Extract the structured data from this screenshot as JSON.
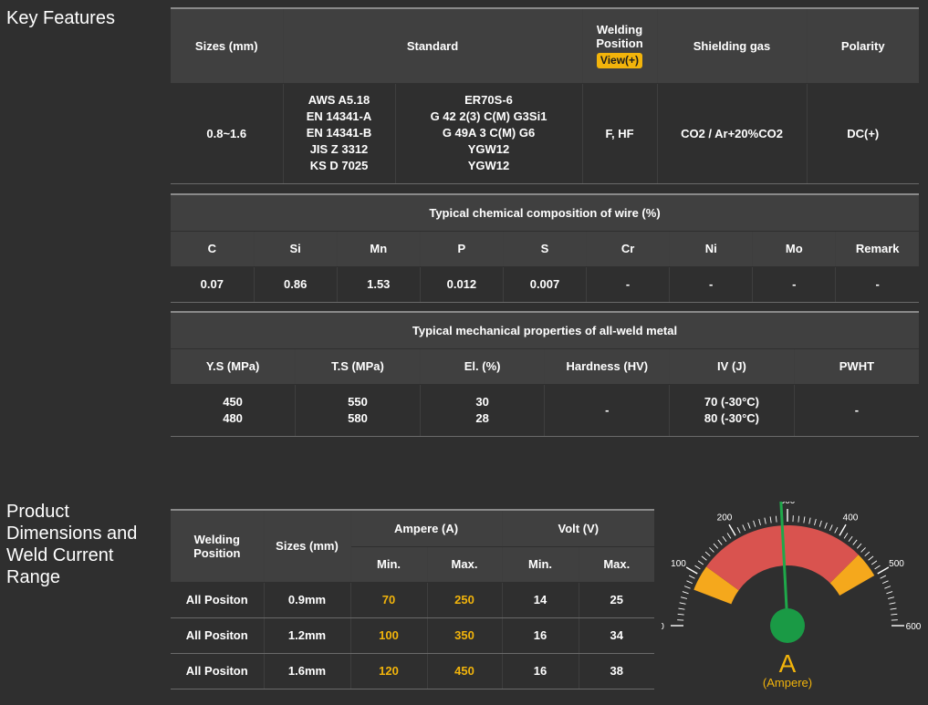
{
  "key_features": {
    "title": "Key Features",
    "headers": {
      "sizes": "Sizes (mm)",
      "standard": "Standard",
      "welding_position": [
        "Welding",
        "Position"
      ],
      "view_button": "View(+)",
      "shielding_gas": "Shielding gas",
      "polarity": "Polarity"
    },
    "row": {
      "sizes": "0.8~1.6",
      "standards": [
        "AWS A5.18",
        "EN 14341-A",
        "EN 14341-B",
        "JIS Z 3312",
        "KS D 7025"
      ],
      "classes": [
        "ER70S-6",
        "G 42 2(3) C(M) G3Si1",
        "G 49A 3 C(M) G6",
        "YGW12",
        "YGW12"
      ],
      "welding_position": "F, HF",
      "shielding_gas": "CO2 / Ar+20%CO2",
      "polarity": "DC(+)"
    }
  },
  "chemical": {
    "title": "Typical chemical composition of wire (%)",
    "headers": [
      "C",
      "Si",
      "Mn",
      "P",
      "S",
      "Cr",
      "Ni",
      "Mo",
      "Remark"
    ],
    "values": [
      "0.07",
      "0.86",
      "1.53",
      "0.012",
      "0.007",
      "-",
      "-",
      "-",
      "-"
    ]
  },
  "mechanical": {
    "title": "Typical mechanical properties of all-weld metal",
    "headers": [
      "Y.S (MPa)",
      "T.S (MPa)",
      "El. (%)",
      "Hardness (HV)",
      "IV (J)",
      "PWHT"
    ],
    "values": [
      [
        "450",
        "480"
      ],
      [
        "550",
        "580"
      ],
      [
        "30",
        "28"
      ],
      [
        "-"
      ],
      [
        "70 (-30°C)",
        "80 (-30°C)"
      ],
      [
        "-"
      ]
    ]
  },
  "dimensions": {
    "title": [
      "Product",
      "Dimensions and",
      "Weld Current",
      "Range"
    ],
    "headers": {
      "welding_position": [
        "Welding",
        "Position"
      ],
      "sizes": "Sizes (mm)",
      "ampere": "Ampere (A)",
      "volt": "Volt (V)",
      "min": "Min.",
      "max": "Max."
    },
    "rows": [
      {
        "position": "All Positon",
        "size": "0.9mm",
        "amp_min": "70",
        "amp_max": "250",
        "volt_min": "14",
        "volt_max": "25"
      },
      {
        "position": "All Positon",
        "size": "1.2mm",
        "amp_min": "100",
        "amp_max": "350",
        "volt_min": "16",
        "volt_max": "34"
      },
      {
        "position": "All Positon",
        "size": "1.6mm",
        "amp_min": "120",
        "amp_max": "450",
        "volt_min": "16",
        "volt_max": "38"
      }
    ]
  },
  "gauge": {
    "unit_letter": "A",
    "unit_label": "(Ampere)",
    "scale_min": 0,
    "scale_max": 600,
    "tick_labels": [
      "0",
      "100",
      "200",
      "300",
      "400",
      "500",
      "600"
    ],
    "zones": [
      {
        "from": 70,
        "to": 120,
        "color": "#f5a81c"
      },
      {
        "from": 120,
        "to": 450,
        "color": "#d9534f"
      },
      {
        "from": 450,
        "to": 500,
        "color": "#f5a81c"
      }
    ],
    "needle_value": 290,
    "needle_color": "#1fa84a",
    "hub_color": "#1a9a45",
    "accent_color": "#f2b40b"
  }
}
